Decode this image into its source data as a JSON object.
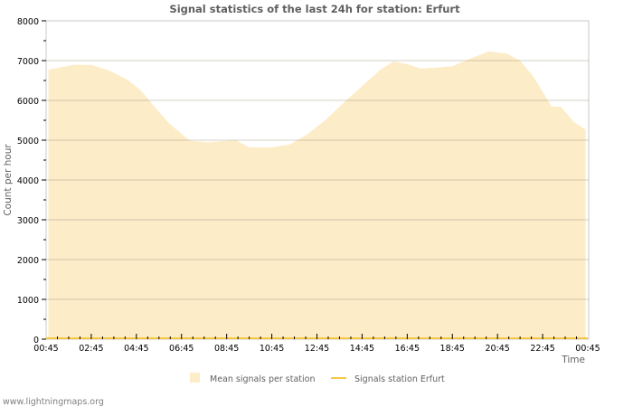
{
  "chart_data": {
    "type": "area",
    "title": "Signal statistics of the last 24h for station: Erfurt",
    "xlabel": "Time",
    "ylabel": "Count per hour",
    "ylim": [
      0,
      8000
    ],
    "yticks": [
      0,
      1000,
      2000,
      3000,
      4000,
      5000,
      6000,
      7000,
      8000
    ],
    "xticks": [
      "00:45",
      "02:45",
      "04:45",
      "06:45",
      "08:45",
      "10:45",
      "12:45",
      "14:45",
      "16:45",
      "18:45",
      "20:45",
      "22:45",
      "00:45"
    ],
    "grid": true,
    "legend_position": "bottom",
    "series": [
      {
        "name": "Mean signals per station",
        "style": "area",
        "color": "#fdecc8",
        "x_hours": [
          0.1,
          1.2,
          2.0,
          2.8,
          3.6,
          4.2,
          4.8,
          5.4,
          6.0,
          6.4,
          7.2,
          8.4,
          9.0,
          10.0,
          10.8,
          11.6,
          12.4,
          13.2,
          14.0,
          14.8,
          15.4,
          16.0,
          16.6,
          17.2,
          18.0,
          18.8,
          19.6,
          20.4,
          21.0,
          21.6,
          22.4,
          22.8,
          23.4,
          23.9
        ],
        "values": [
          6770,
          6890,
          6890,
          6750,
          6520,
          6250,
          5840,
          5450,
          5160,
          4980,
          4950,
          5000,
          4820,
          4820,
          4890,
          5160,
          5520,
          5950,
          6360,
          6770,
          6980,
          6910,
          6800,
          6820,
          6860,
          7050,
          7230,
          7180,
          7000,
          6590,
          5840,
          5840,
          5450,
          5270
        ]
      },
      {
        "name": "Signals station Erfurt",
        "style": "line",
        "color": "#f5c842",
        "x_hours": [
          0,
          24
        ],
        "values": [
          0,
          0
        ]
      }
    ]
  },
  "legend": {
    "items": [
      {
        "label": "Mean signals per station",
        "swatch": "box",
        "color": "#fdecc8"
      },
      {
        "label": "Signals station Erfurt",
        "swatch": "line",
        "color": "#f5c842"
      }
    ]
  },
  "footer": {
    "text": "www.lightningmaps.org"
  }
}
